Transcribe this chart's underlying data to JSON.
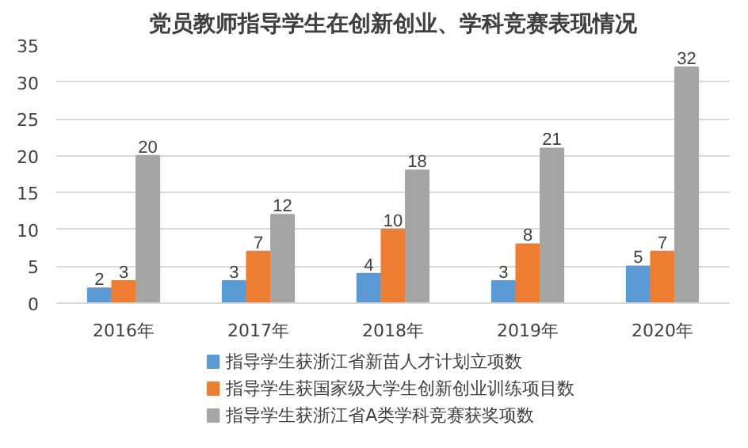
{
  "chart_data": {
    "type": "bar",
    "title": "党员教师指导学生在创新创业、学科竞赛表现情况",
    "categories": [
      "2016年",
      "2017年",
      "2018年",
      "2019年",
      "2020年"
    ],
    "series": [
      {
        "name": "指导学生获浙江省新苗人才计划立项数",
        "color": "#5b9bd5",
        "values": [
          2,
          3,
          4,
          3,
          5
        ]
      },
      {
        "name": "指导学生获国家级大学生创新创业训练项目数",
        "color": "#ed7d31",
        "values": [
          3,
          7,
          10,
          8,
          7
        ]
      },
      {
        "name": "指导学生获浙江省A类学科竞赛获奖项数",
        "color": "#a5a5a5",
        "values": [
          20,
          12,
          18,
          21,
          32
        ]
      }
    ],
    "ylim": [
      0,
      35
    ],
    "yticks": [
      0,
      5,
      10,
      15,
      20,
      25,
      30,
      35
    ],
    "grid": "y",
    "legend": "bottom",
    "data_labels": true
  }
}
